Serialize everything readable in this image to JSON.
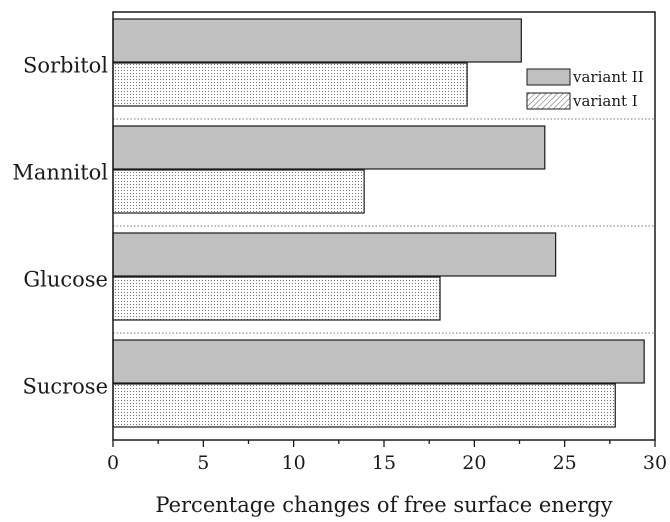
{
  "chart_data": {
    "type": "bar",
    "orientation": "horizontal",
    "categories": [
      "Sorbitol",
      "Mannitol",
      "Glucose",
      "Sucrose"
    ],
    "series": [
      {
        "name": "variant II",
        "values": [
          22.6,
          23.9,
          24.5,
          29.4
        ],
        "fill": "#c0c0c0",
        "pattern": "solid"
      },
      {
        "name": "variant I",
        "values": [
          19.6,
          13.9,
          18.1,
          27.8
        ],
        "fill": "#ffffff",
        "pattern": "dotted"
      }
    ],
    "title": "",
    "xlabel": "Percentage changes of free surface energy",
    "ylabel": "",
    "xlim": [
      0,
      30
    ],
    "xticks": [
      "0",
      "5",
      "10",
      "15",
      "20",
      "25",
      "30"
    ],
    "grid": false,
    "group_separators": "dotted",
    "legend": {
      "position": "top-right",
      "entries": [
        "variant II",
        "variant I"
      ]
    },
    "colors": {
      "axis": "#1a1a1a",
      "bar_outline": "#1a1a1a",
      "dots": "#555555"
    }
  }
}
